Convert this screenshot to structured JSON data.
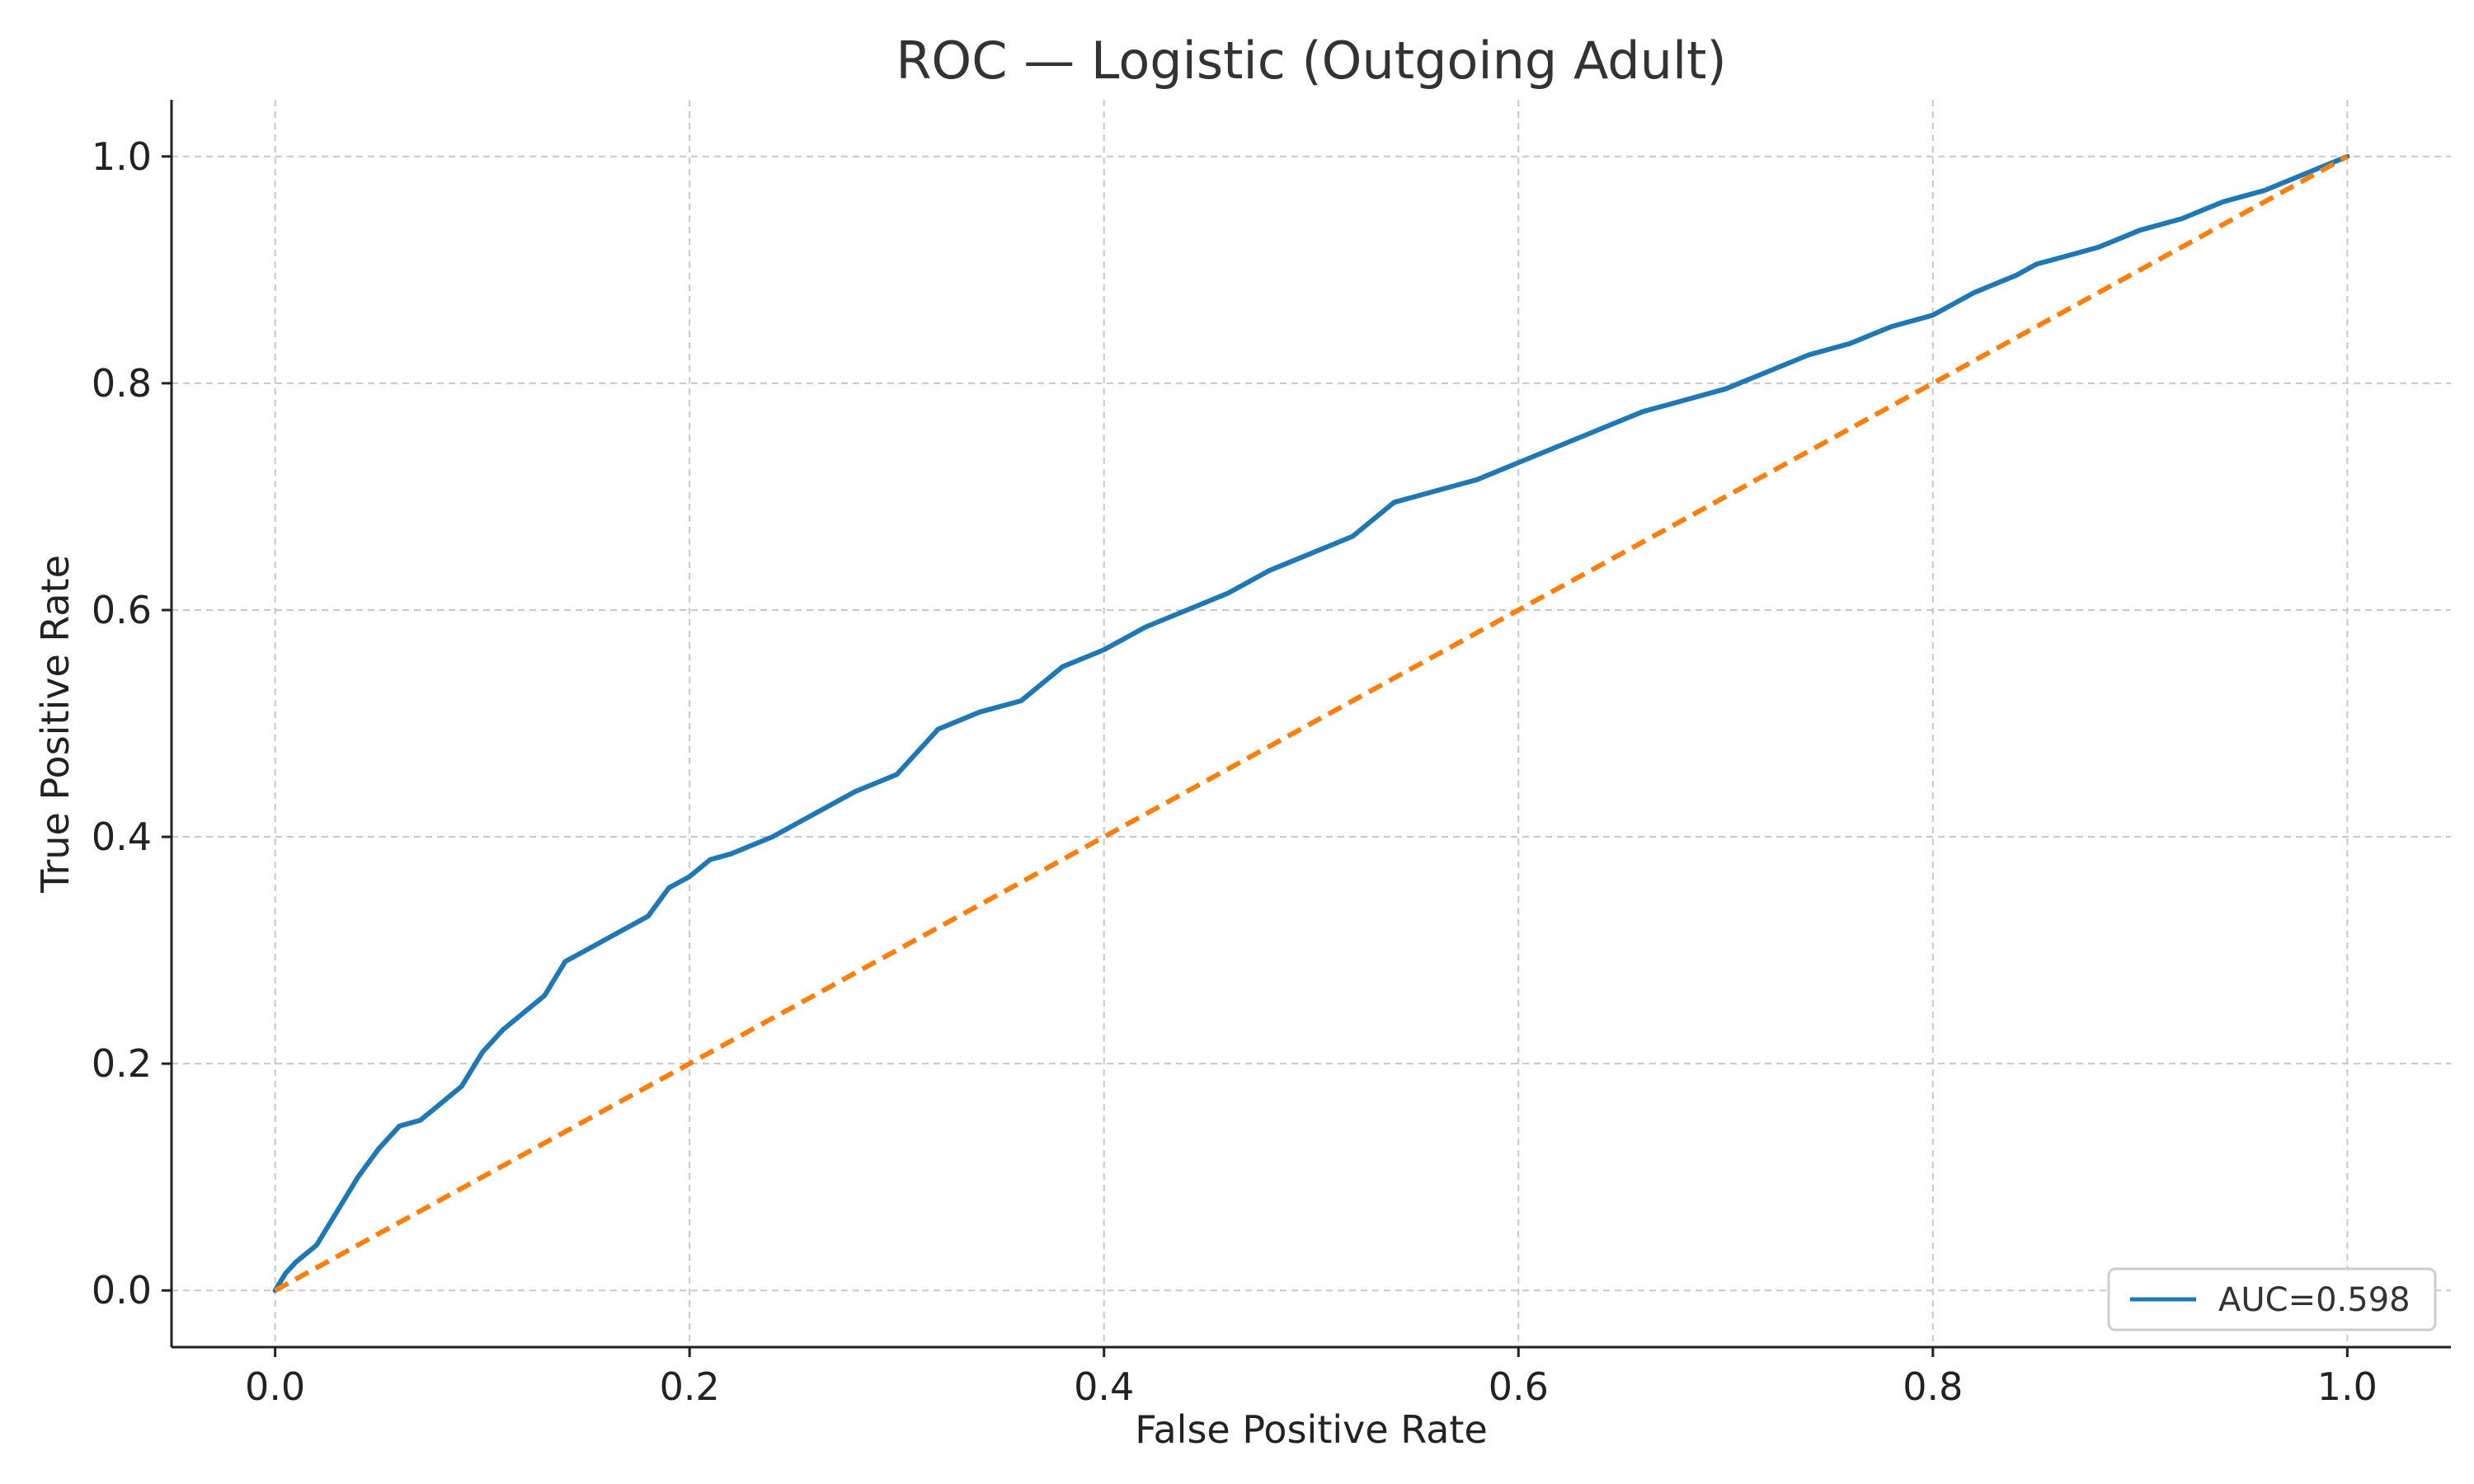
{
  "chart_data": {
    "type": "line",
    "title": "ROC — Logistic (Outgoing Adult)",
    "xlabel": "False Positive Rate",
    "ylabel": "True Positive Rate",
    "xlim": [
      -0.05,
      1.05
    ],
    "ylim": [
      -0.05,
      1.05
    ],
    "x_ticks": [
      "0.0",
      "0.2",
      "0.4",
      "0.6",
      "0.8",
      "1.0"
    ],
    "y_ticks": [
      "0.0",
      "0.2",
      "0.4",
      "0.6",
      "0.8",
      "1.0"
    ],
    "grid": true,
    "legend_position": "lower-right",
    "series": [
      {
        "name": "AUC=0.598",
        "color": "#1f77b4",
        "style": "solid",
        "x": [
          0.0,
          0.005,
          0.01,
          0.02,
          0.03,
          0.04,
          0.05,
          0.06,
          0.07,
          0.08,
          0.09,
          0.1,
          0.11,
          0.12,
          0.13,
          0.14,
          0.15,
          0.16,
          0.18,
          0.19,
          0.2,
          0.21,
          0.22,
          0.24,
          0.26,
          0.28,
          0.3,
          0.31,
          0.32,
          0.34,
          0.36,
          0.37,
          0.38,
          0.4,
          0.42,
          0.44,
          0.46,
          0.48,
          0.5,
          0.52,
          0.53,
          0.54,
          0.56,
          0.58,
          0.6,
          0.62,
          0.64,
          0.66,
          0.68,
          0.7,
          0.72,
          0.74,
          0.76,
          0.78,
          0.8,
          0.82,
          0.84,
          0.85,
          0.86,
          0.88,
          0.9,
          0.92,
          0.94,
          0.96,
          0.98,
          1.0
        ],
        "y": [
          0.0,
          0.015,
          0.025,
          0.04,
          0.07,
          0.1,
          0.125,
          0.145,
          0.15,
          0.165,
          0.18,
          0.21,
          0.23,
          0.245,
          0.26,
          0.29,
          0.3,
          0.31,
          0.33,
          0.355,
          0.365,
          0.38,
          0.385,
          0.4,
          0.42,
          0.44,
          0.455,
          0.475,
          0.495,
          0.51,
          0.52,
          0.535,
          0.55,
          0.565,
          0.585,
          0.6,
          0.615,
          0.635,
          0.65,
          0.665,
          0.68,
          0.695,
          0.705,
          0.715,
          0.73,
          0.745,
          0.76,
          0.775,
          0.785,
          0.795,
          0.81,
          0.825,
          0.835,
          0.85,
          0.86,
          0.88,
          0.895,
          0.905,
          0.91,
          0.92,
          0.935,
          0.945,
          0.96,
          0.97,
          0.985,
          1.0
        ]
      },
      {
        "name": "",
        "color": "#ff7f0e",
        "style": "dashed",
        "x": [
          0.0,
          1.0
        ],
        "y": [
          0.0,
          1.0
        ]
      }
    ]
  }
}
